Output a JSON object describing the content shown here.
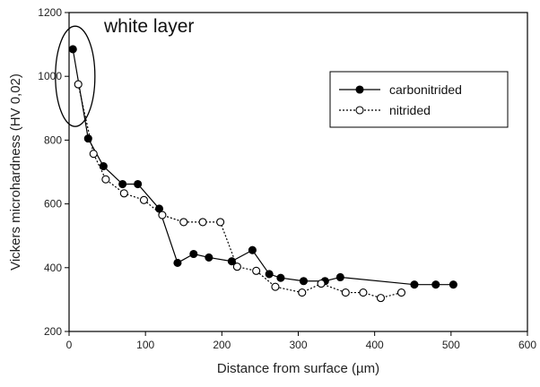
{
  "chart_data": {
    "type": "line",
    "title": "",
    "xlabel": "Distance from surface (µm)",
    "ylabel": "Vickers microhardness (HV 0,02)",
    "xlim": [
      0,
      600
    ],
    "ylim": [
      200,
      1200
    ],
    "xticks": [
      0,
      100,
      200,
      300,
      400,
      500,
      600
    ],
    "yticks": [
      200,
      400,
      600,
      800,
      1000,
      1200
    ],
    "grid": false,
    "legend_position": "top-right",
    "annotation": "white layer",
    "series": [
      {
        "name": "carbonitrided",
        "marker": "filled-circle",
        "line_style": "solid",
        "color": "#000000",
        "x": [
          5,
          25,
          45,
          70,
          90,
          118,
          142,
          163,
          183,
          213,
          240,
          262,
          277,
          307,
          335,
          355,
          452,
          480,
          503
        ],
        "y": [
          1085,
          805,
          718,
          662,
          662,
          585,
          415,
          443,
          432,
          420,
          455,
          380,
          368,
          358,
          358,
          370,
          347,
          347,
          347
        ]
      },
      {
        "name": "nitrided",
        "marker": "open-circle",
        "line_style": "dotted",
        "color": "#000000",
        "x": [
          12,
          32,
          48,
          72,
          98,
          122,
          150,
          175,
          198,
          220,
          245,
          270,
          305,
          330,
          362,
          385,
          408,
          435
        ],
        "y": [
          975,
          757,
          677,
          633,
          612,
          565,
          543,
          543,
          543,
          403,
          390,
          340,
          322,
          350,
          322,
          322,
          305,
          322
        ]
      }
    ]
  }
}
